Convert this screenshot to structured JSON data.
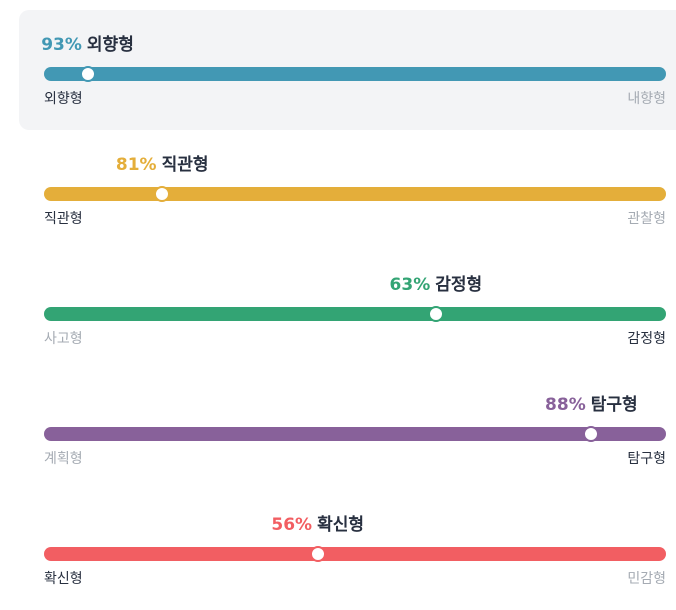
{
  "traits": [
    {
      "percent": 93,
      "percent_label": "93%",
      "type": "외향형",
      "left_label": "외향형",
      "right_label": "내향형",
      "color": "#4298b4",
      "active_side": "left",
      "selected": true
    },
    {
      "percent": 81,
      "percent_label": "81%",
      "type": "직관형",
      "left_label": "직관형",
      "right_label": "관찰형",
      "color": "#e4ae3a",
      "active_side": "left",
      "selected": false
    },
    {
      "percent": 63,
      "percent_label": "63%",
      "type": "감정형",
      "left_label": "사고형",
      "right_label": "감정형",
      "color": "#33a474",
      "active_side": "right",
      "selected": false
    },
    {
      "percent": 88,
      "percent_label": "88%",
      "type": "탐구형",
      "left_label": "계획형",
      "right_label": "탐구형",
      "color": "#88619a",
      "active_side": "right",
      "selected": false
    },
    {
      "percent": 56,
      "percent_label": "56%",
      "type": "확신형",
      "left_label": "확신형",
      "right_label": "민감형",
      "color": "#f25e62",
      "active_side": "left",
      "selected": false
    }
  ]
}
